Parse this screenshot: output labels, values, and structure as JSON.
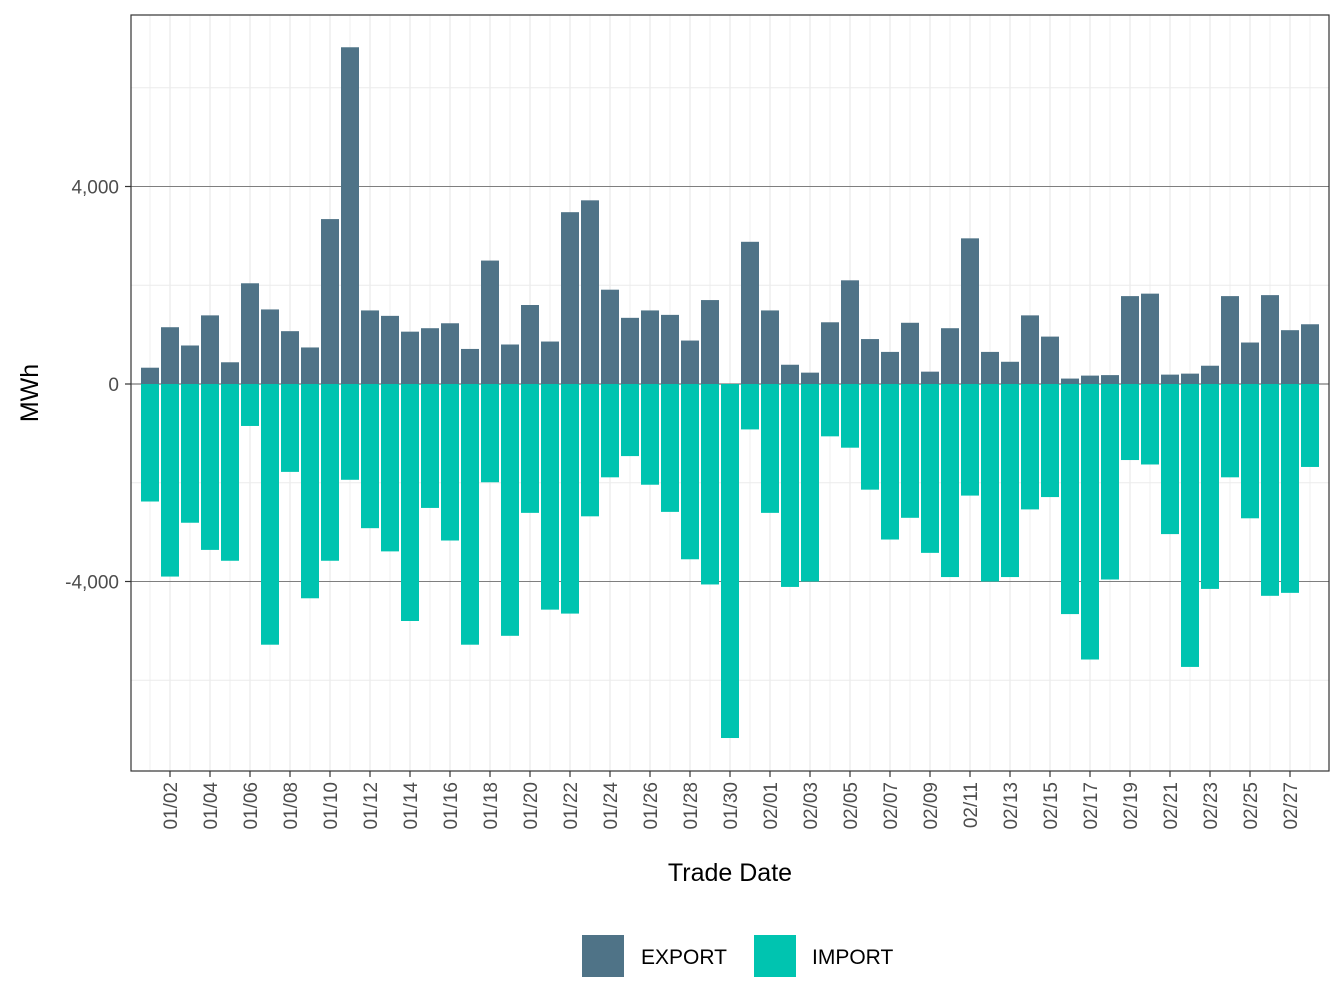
{
  "chart_data": {
    "type": "bar",
    "xlabel": "Trade Date",
    "ylabel": "MWh",
    "ylim": [
      -7800,
      7400
    ],
    "yticks": [
      -4000,
      0,
      4000
    ],
    "ytick_labels": [
      "-4,000",
      "0",
      "4,000"
    ],
    "grid": true,
    "legend_position": "bottom",
    "colors": {
      "EXPORT": "#4f7387",
      "IMPORT": "#00c4b0"
    },
    "categories": [
      "01/01",
      "01/02",
      "01/03",
      "01/04",
      "01/05",
      "01/06",
      "01/07",
      "01/08",
      "01/09",
      "01/10",
      "01/11",
      "01/12",
      "01/13",
      "01/14",
      "01/15",
      "01/16",
      "01/17",
      "01/18",
      "01/19",
      "01/20",
      "01/21",
      "01/22",
      "01/23",
      "01/24",
      "01/25",
      "01/26",
      "01/27",
      "01/28",
      "01/29",
      "01/30",
      "01/31",
      "02/01",
      "02/02",
      "02/03",
      "02/04",
      "02/05",
      "02/06",
      "02/07",
      "02/08",
      "02/09",
      "02/10",
      "02/11",
      "02/12",
      "02/13",
      "02/14",
      "02/15",
      "02/16",
      "02/17",
      "02/18",
      "02/19",
      "02/20",
      "02/21",
      "02/22",
      "02/23",
      "02/24",
      "02/25",
      "02/26",
      "02/27",
      "02/28"
    ],
    "xtick_labels": [
      "01/02",
      "01/04",
      "01/06",
      "01/08",
      "01/10",
      "01/12",
      "01/14",
      "01/16",
      "01/18",
      "01/20",
      "01/22",
      "01/24",
      "01/26",
      "01/28",
      "01/30",
      "02/01",
      "02/03",
      "02/05",
      "02/07",
      "02/09",
      "02/11",
      "02/13",
      "02/15",
      "02/17",
      "02/19",
      "02/21",
      "02/23",
      "02/25",
      "02/27"
    ],
    "series": [
      {
        "name": "EXPORT",
        "values": [
          330,
          1150,
          780,
          1390,
          440,
          2040,
          1510,
          1070,
          740,
          3340,
          6820,
          1490,
          1380,
          1060,
          1130,
          1230,
          710,
          2500,
          800,
          1600,
          860,
          3480,
          3720,
          1910,
          1340,
          1490,
          1400,
          880,
          1700,
          0,
          2880,
          1490,
          390,
          230,
          1250,
          2100,
          910,
          650,
          1240,
          250,
          1130,
          2950,
          650,
          450,
          1390,
          960,
          110,
          170,
          180,
          1780,
          1830,
          190,
          210,
          370,
          1780,
          840,
          1800,
          1090,
          1210
        ]
      },
      {
        "name": "IMPORT",
        "values": [
          -2380,
          -3900,
          -2810,
          -3360,
          -3580,
          -850,
          -5280,
          -1780,
          -4340,
          -3580,
          -1940,
          -2920,
          -3390,
          -4800,
          -2510,
          -3170,
          -5280,
          -1990,
          -5100,
          -2610,
          -4570,
          -4650,
          -2680,
          -1890,
          -1460,
          -2040,
          -2590,
          -3550,
          -4060,
          -7170,
          -920,
          -2610,
          -4110,
          -4000,
          -1060,
          -1290,
          -2140,
          -3150,
          -2710,
          -3420,
          -3910,
          -2260,
          -4000,
          -3910,
          -2540,
          -2290,
          -4660,
          -5580,
          -3960,
          -1540,
          -1630,
          -3040,
          -5730,
          -4150,
          -1890,
          -2720,
          -4290,
          -4230,
          -1680
        ]
      }
    ]
  }
}
